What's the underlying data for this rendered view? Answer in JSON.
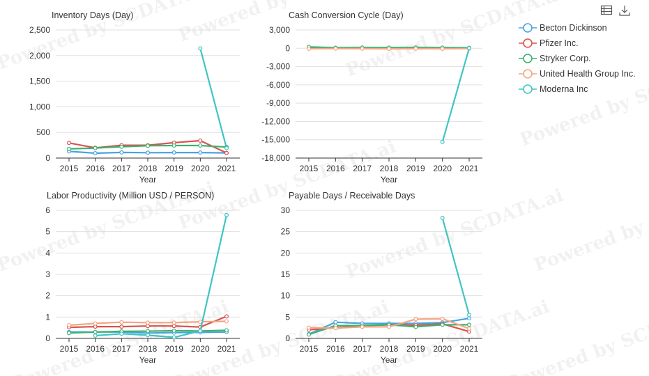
{
  "watermark_text": "Powered by SCDATA.ai",
  "toolbar": {
    "table_icon": "table-icon",
    "download_icon": "download-icon"
  },
  "legend": [
    {
      "name": "Becton Dickinson",
      "color": "#4aa3df"
    },
    {
      "name": "Pfizer Inc.",
      "color": "#d9534f"
    },
    {
      "name": "Stryker Corp.",
      "color": "#3cb371"
    },
    {
      "name": "United Health Group Inc.",
      "color": "#f4a582"
    },
    {
      "name": "Moderna Inc",
      "color": "#40c4c4"
    }
  ],
  "chart_data": [
    {
      "type": "line",
      "title": "Inventory Days (Day)",
      "xlabel": "Year",
      "ylabel": "",
      "categories": [
        "2015",
        "2016",
        "2017",
        "2018",
        "2019",
        "2020",
        "2021"
      ],
      "ylim": [
        0,
        2500
      ],
      "yticks": [
        0,
        500,
        1000,
        1500,
        2000,
        2500
      ],
      "ytick_labels": [
        "0",
        "500",
        "1,000",
        "1,500",
        "2,000",
        "2,500"
      ],
      "series": [
        {
          "name": "Becton Dickinson",
          "values": [
            130,
            95,
            110,
            105,
            108,
            108,
            100
          ]
        },
        {
          "name": "Pfizer Inc.",
          "values": [
            295,
            200,
            250,
            250,
            300,
            340,
            100
          ]
        },
        {
          "name": "Stryker Corp.",
          "values": [
            180,
            195,
            220,
            240,
            245,
            245,
            215
          ]
        },
        {
          "name": "United Health Group Inc.",
          "values": [
            null,
            null,
            null,
            null,
            null,
            null,
            null
          ]
        },
        {
          "name": "Moderna Inc",
          "values": [
            null,
            null,
            null,
            null,
            null,
            2140,
            195
          ]
        }
      ]
    },
    {
      "type": "line",
      "title": "Cash Conversion Cycle (Day)",
      "xlabel": "Year",
      "ylabel": "",
      "categories": [
        "2015",
        "2016",
        "2017",
        "2018",
        "2019",
        "2020",
        "2021"
      ],
      "ylim": [
        -18000,
        3000
      ],
      "yticks": [
        -18000,
        -15000,
        -12000,
        -9000,
        -6000,
        -3000,
        0,
        3000
      ],
      "ytick_labels": [
        "-18,000",
        "-15,000",
        "-12,000",
        "-9,000",
        "-6,000",
        "-3,000",
        "0",
        "3,000"
      ],
      "series": [
        {
          "name": "Becton Dickinson",
          "values": [
            60,
            40,
            50,
            50,
            55,
            50,
            40
          ]
        },
        {
          "name": "Pfizer Inc.",
          "values": [
            100,
            40,
            80,
            60,
            90,
            80,
            30
          ]
        },
        {
          "name": "Stryker Corp.",
          "values": [
            220,
            90,
            120,
            100,
            130,
            110,
            80
          ]
        },
        {
          "name": "United Health Group Inc.",
          "values": [
            -80,
            -60,
            -70,
            -90,
            -70,
            -80,
            -60
          ]
        },
        {
          "name": "Moderna Inc",
          "values": [
            null,
            null,
            null,
            null,
            null,
            -15350,
            0
          ]
        }
      ]
    },
    {
      "type": "line",
      "title": "Labor Productivity (Million USD / PERSON)",
      "xlabel": "Year",
      "ylabel": "",
      "categories": [
        "2015",
        "2016",
        "2017",
        "2018",
        "2019",
        "2020",
        "2021"
      ],
      "ylim": [
        0,
        6
      ],
      "yticks": [
        0,
        1,
        2,
        3,
        4,
        5,
        6
      ],
      "ytick_labels": [
        "0",
        "1",
        "2",
        "3",
        "4",
        "5",
        "6"
      ],
      "series": [
        {
          "name": "Becton Dickinson",
          "values": [
            0.3,
            0.3,
            0.3,
            0.25,
            0.27,
            0.28,
            0.3
          ]
        },
        {
          "name": "Pfizer Inc.",
          "values": [
            0.52,
            0.55,
            0.55,
            0.58,
            0.58,
            0.53,
            1.03
          ]
        },
        {
          "name": "Stryker Corp.",
          "values": [
            0.25,
            0.3,
            0.33,
            0.34,
            0.36,
            0.35,
            0.38
          ]
        },
        {
          "name": "United Health Group Inc.",
          "values": [
            0.62,
            0.7,
            0.76,
            0.74,
            0.74,
            0.78,
            0.8
          ]
        },
        {
          "name": "Moderna Inc",
          "values": [
            null,
            0.13,
            0.22,
            0.15,
            0.05,
            0.35,
            5.78
          ]
        }
      ]
    },
    {
      "type": "line",
      "title": "Payable Days / Receivable Days",
      "xlabel": "Year",
      "ylabel": "",
      "categories": [
        "2015",
        "2016",
        "2017",
        "2018",
        "2019",
        "2020",
        "2021"
      ],
      "ylim": [
        0,
        30
      ],
      "yticks": [
        0,
        5,
        10,
        15,
        20,
        25,
        30
      ],
      "ytick_labels": [
        "0",
        "5",
        "10",
        "15",
        "20",
        "25",
        "30"
      ],
      "series": [
        {
          "name": "Becton Dickinson",
          "values": [
            1.0,
            3.8,
            3.5,
            3.5,
            3.5,
            3.7,
            4.7
          ]
        },
        {
          "name": "Pfizer Inc.",
          "values": [
            2.0,
            2.5,
            3.0,
            3.2,
            3.1,
            3.4,
            1.6
          ]
        },
        {
          "name": "Stryker Corp.",
          "values": [
            0.9,
            3.0,
            3.0,
            3.2,
            2.7,
            3.2,
            3.2
          ]
        },
        {
          "name": "United Health Group Inc.",
          "values": [
            2.5,
            2.4,
            2.7,
            2.7,
            4.5,
            4.6,
            2.3
          ]
        },
        {
          "name": "Moderna Inc",
          "values": [
            null,
            null,
            null,
            null,
            null,
            28.2,
            5.5
          ]
        }
      ]
    }
  ]
}
